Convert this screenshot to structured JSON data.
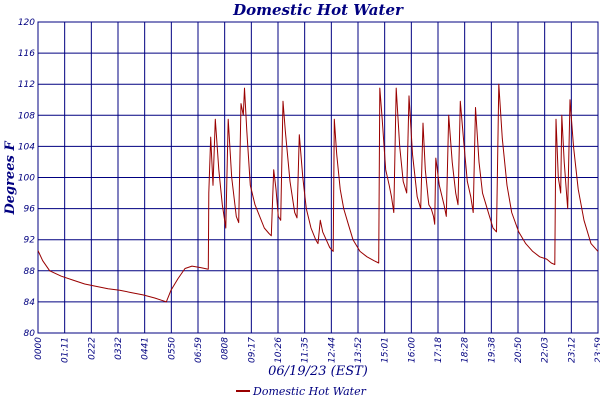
{
  "chart_data": {
    "type": "line",
    "title": "Domestic Hot Water",
    "xlabel": "06/19/23 (EST)",
    "ylabel": "Degrees F",
    "x_tick_labels": [
      "0000",
      "01:11",
      "0222",
      "0332",
      "0441",
      "0550",
      "06:59",
      "0808",
      "09:17",
      "10:26",
      "11:35",
      "12:44",
      "13:52",
      "15:01",
      "16:00",
      "17:18",
      "18:28",
      "19:38",
      "20:50",
      "22:03",
      "23:12",
      "23:59"
    ],
    "x_range_hours": [
      0,
      24
    ],
    "ylim": [
      80,
      120
    ],
    "y_ticks": [
      80,
      84,
      88,
      92,
      96,
      100,
      104,
      108,
      112,
      116,
      120
    ],
    "grid": true,
    "legend_position": "bottom-center",
    "series": [
      {
        "name": "Domestic Hot Water",
        "color": "#990000",
        "points": [
          [
            0.0,
            90.6
          ],
          [
            0.2,
            89.3
          ],
          [
            0.5,
            88.0
          ],
          [
            1.0,
            87.3
          ],
          [
            1.5,
            86.8
          ],
          [
            2.0,
            86.3
          ],
          [
            2.5,
            86.0
          ],
          [
            3.0,
            85.7
          ],
          [
            3.5,
            85.5
          ],
          [
            4.0,
            85.2
          ],
          [
            4.5,
            84.9
          ],
          [
            5.0,
            84.5
          ],
          [
            5.3,
            84.2
          ],
          [
            5.5,
            84.0
          ],
          [
            5.7,
            85.5
          ],
          [
            6.0,
            87.0
          ],
          [
            6.3,
            88.3
          ],
          [
            6.6,
            88.6
          ],
          [
            7.0,
            88.4
          ],
          [
            7.3,
            88.2
          ],
          [
            7.32,
            98.0
          ],
          [
            7.4,
            105.2
          ],
          [
            7.5,
            99.0
          ],
          [
            7.6,
            107.5
          ],
          [
            7.75,
            101.0
          ],
          [
            7.9,
            96.5
          ],
          [
            8.05,
            93.5
          ],
          [
            8.15,
            107.5
          ],
          [
            8.3,
            100.0
          ],
          [
            8.5,
            95.0
          ],
          [
            8.6,
            94.2
          ],
          [
            8.7,
            109.5
          ],
          [
            8.8,
            108.0
          ],
          [
            8.85,
            111.5
          ],
          [
            8.95,
            106.0
          ],
          [
            9.1,
            99.0
          ],
          [
            9.3,
            96.5
          ],
          [
            9.5,
            95.0
          ],
          [
            9.7,
            93.5
          ],
          [
            9.9,
            92.8
          ],
          [
            10.0,
            92.5
          ],
          [
            10.1,
            101.0
          ],
          [
            10.2,
            98.5
          ],
          [
            10.3,
            95.0
          ],
          [
            10.4,
            94.5
          ],
          [
            10.5,
            109.8
          ],
          [
            10.6,
            106.0
          ],
          [
            10.8,
            99.5
          ],
          [
            11.0,
            95.5
          ],
          [
            11.1,
            94.8
          ],
          [
            11.2,
            105.5
          ],
          [
            11.35,
            100.0
          ],
          [
            11.5,
            96.0
          ],
          [
            11.7,
            93.5
          ],
          [
            11.9,
            92.0
          ],
          [
            12.0,
            91.5
          ],
          [
            12.1,
            94.5
          ],
          [
            12.2,
            93.0
          ],
          [
            12.35,
            92.0
          ],
          [
            12.5,
            91.0
          ],
          [
            12.65,
            90.5
          ],
          [
            12.7,
            107.5
          ],
          [
            12.8,
            103.0
          ],
          [
            12.95,
            98.5
          ],
          [
            13.1,
            96.0
          ],
          [
            13.3,
            94.0
          ],
          [
            13.5,
            92.0
          ],
          [
            13.8,
            90.5
          ],
          [
            14.1,
            89.8
          ],
          [
            14.4,
            89.3
          ],
          [
            14.6,
            89.0
          ],
          [
            14.65,
            111.5
          ],
          [
            14.75,
            107.5
          ],
          [
            14.9,
            101.0
          ],
          [
            15.05,
            99.0
          ],
          [
            15.15,
            97.5
          ],
          [
            15.25,
            95.5
          ],
          [
            15.35,
            111.5
          ],
          [
            15.5,
            104.0
          ],
          [
            15.65,
            99.5
          ],
          [
            15.8,
            98.0
          ],
          [
            15.9,
            110.5
          ],
          [
            16.05,
            103.0
          ],
          [
            16.25,
            97.5
          ],
          [
            16.4,
            96.0
          ],
          [
            16.5,
            107.0
          ],
          [
            16.6,
            101.0
          ],
          [
            16.75,
            96.5
          ],
          [
            16.85,
            96.0
          ],
          [
            16.95,
            95.0
          ],
          [
            17.0,
            94.0
          ],
          [
            17.05,
            102.5
          ],
          [
            17.2,
            99.0
          ],
          [
            17.4,
            96.5
          ],
          [
            17.5,
            95.0
          ],
          [
            17.6,
            108.0
          ],
          [
            17.75,
            102.0
          ],
          [
            17.9,
            98.0
          ],
          [
            18.0,
            96.5
          ],
          [
            18.1,
            109.8
          ],
          [
            18.25,
            104.5
          ],
          [
            18.4,
            99.5
          ],
          [
            18.55,
            97.5
          ],
          [
            18.65,
            95.5
          ],
          [
            18.75,
            109.0
          ],
          [
            18.9,
            102.0
          ],
          [
            19.05,
            98.0
          ],
          [
            19.2,
            96.5
          ],
          [
            19.35,
            95.0
          ],
          [
            19.5,
            93.5
          ],
          [
            19.65,
            93.0
          ],
          [
            19.75,
            112.0
          ],
          [
            19.9,
            105.0
          ],
          [
            20.1,
            99.0
          ],
          [
            20.3,
            95.5
          ],
          [
            20.6,
            93.0
          ],
          [
            20.9,
            91.5
          ],
          [
            21.2,
            90.5
          ],
          [
            21.5,
            89.8
          ],
          [
            21.8,
            89.5
          ],
          [
            22.0,
            89.0
          ],
          [
            22.15,
            88.8
          ],
          [
            22.2,
            107.5
          ],
          [
            22.3,
            100.0
          ],
          [
            22.4,
            98.0
          ],
          [
            22.45,
            108.0
          ],
          [
            22.55,
            102.0
          ],
          [
            22.65,
            98.0
          ],
          [
            22.7,
            96.0
          ],
          [
            22.8,
            110.0
          ],
          [
            22.95,
            104.0
          ],
          [
            23.15,
            98.5
          ],
          [
            23.4,
            94.5
          ],
          [
            23.7,
            91.5
          ],
          [
            24.0,
            90.5
          ]
        ]
      }
    ]
  }
}
